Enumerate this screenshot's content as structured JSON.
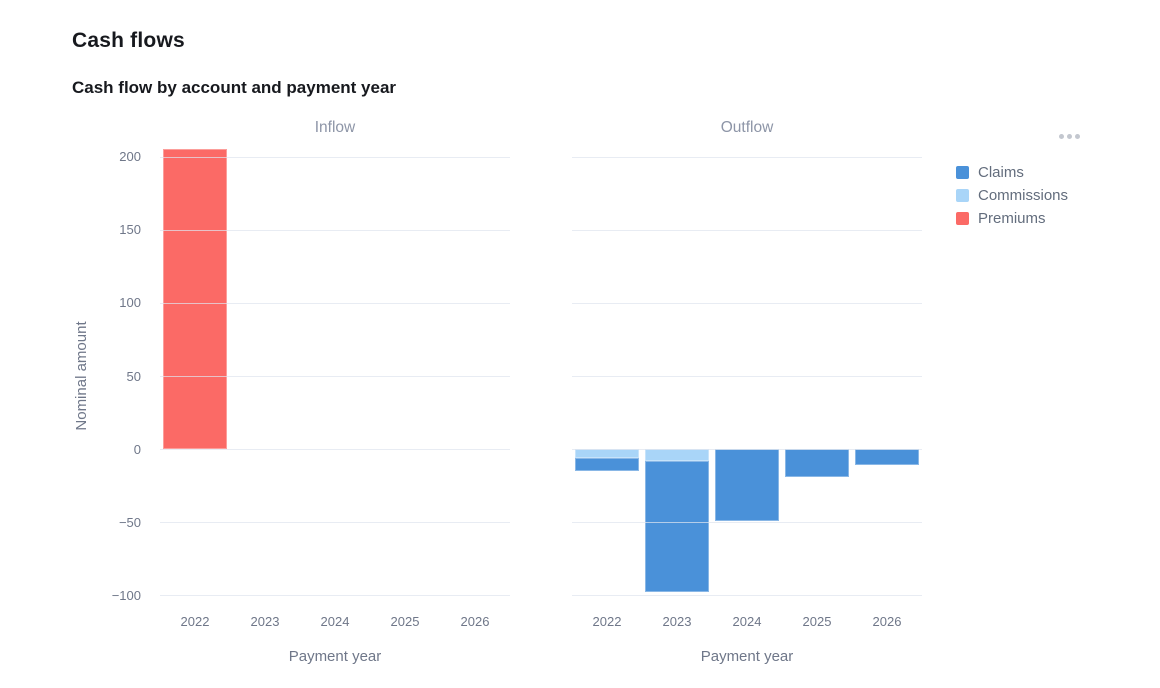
{
  "page": {
    "title": "Cash flows"
  },
  "chart": {
    "title": "Cash flow by account and payment year",
    "options_icon": "ellipsis-icon"
  },
  "chart_data": {
    "type": "bar",
    "stacked": true,
    "categories": [
      "2022",
      "2023",
      "2024",
      "2025",
      "2026"
    ],
    "xlabel": "Payment year",
    "ylabel": "Nominal amount",
    "ylim": [
      -110,
      210
    ],
    "yticks": [
      200,
      150,
      100,
      50,
      0,
      -50,
      -100
    ],
    "grid": true,
    "legend_position": "right",
    "legend": [
      {
        "label": "Claims",
        "color": "#4a91d9"
      },
      {
        "label": "Commissions",
        "color": "#a9d5f8"
      },
      {
        "label": "Premiums",
        "color": "#fb6a66"
      }
    ],
    "subplots": [
      {
        "title": "Inflow",
        "series": [
          {
            "name": "Premiums",
            "color": "#fb6a66",
            "values": [
              205,
              0,
              0,
              0,
              0
            ]
          }
        ]
      },
      {
        "title": "Outflow",
        "series": [
          {
            "name": "Commissions",
            "color": "#a9d5f8",
            "values": [
              -6,
              -8,
              0,
              0,
              0
            ]
          },
          {
            "name": "Claims",
            "color": "#4a91d9",
            "values": [
              -9,
              -90,
              -49,
              -19,
              -11
            ]
          }
        ]
      }
    ]
  }
}
